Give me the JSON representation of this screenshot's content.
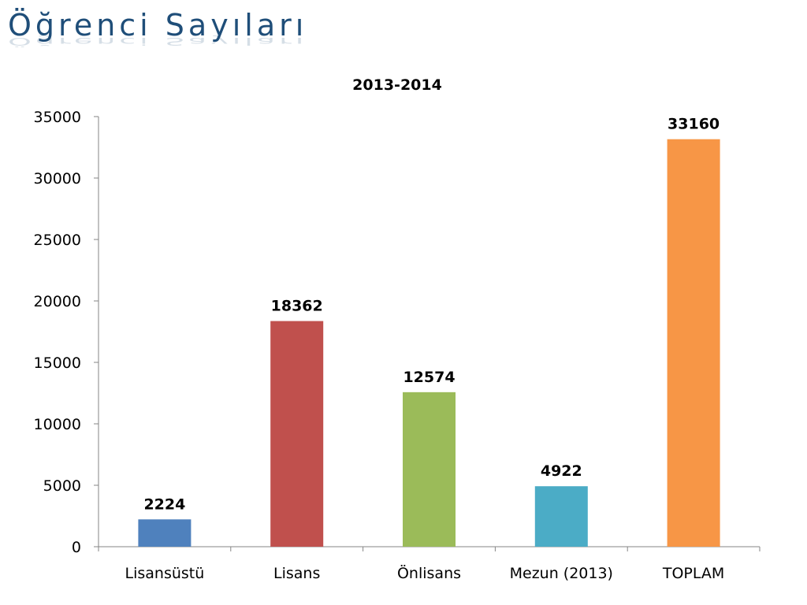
{
  "page": {
    "title": "Öğrenci Sayıları"
  },
  "chart_data": {
    "type": "bar",
    "title": "2013-2014",
    "xlabel": "",
    "ylabel": "",
    "categories": [
      "Lisansüstü",
      "Lisans",
      "Önlisans",
      "Mezun (2013)",
      "TOPLAM"
    ],
    "values": [
      2224,
      18362,
      12574,
      4922,
      33160
    ],
    "colors": [
      "#4f81bd",
      "#c0504d",
      "#9bbb59",
      "#4bacc6",
      "#f79646"
    ],
    "ylim": [
      0,
      35000
    ],
    "yticks": [
      0,
      5000,
      10000,
      15000,
      20000,
      25000,
      30000,
      35000
    ],
    "data_labels": true,
    "grid": false,
    "legend": false
  }
}
